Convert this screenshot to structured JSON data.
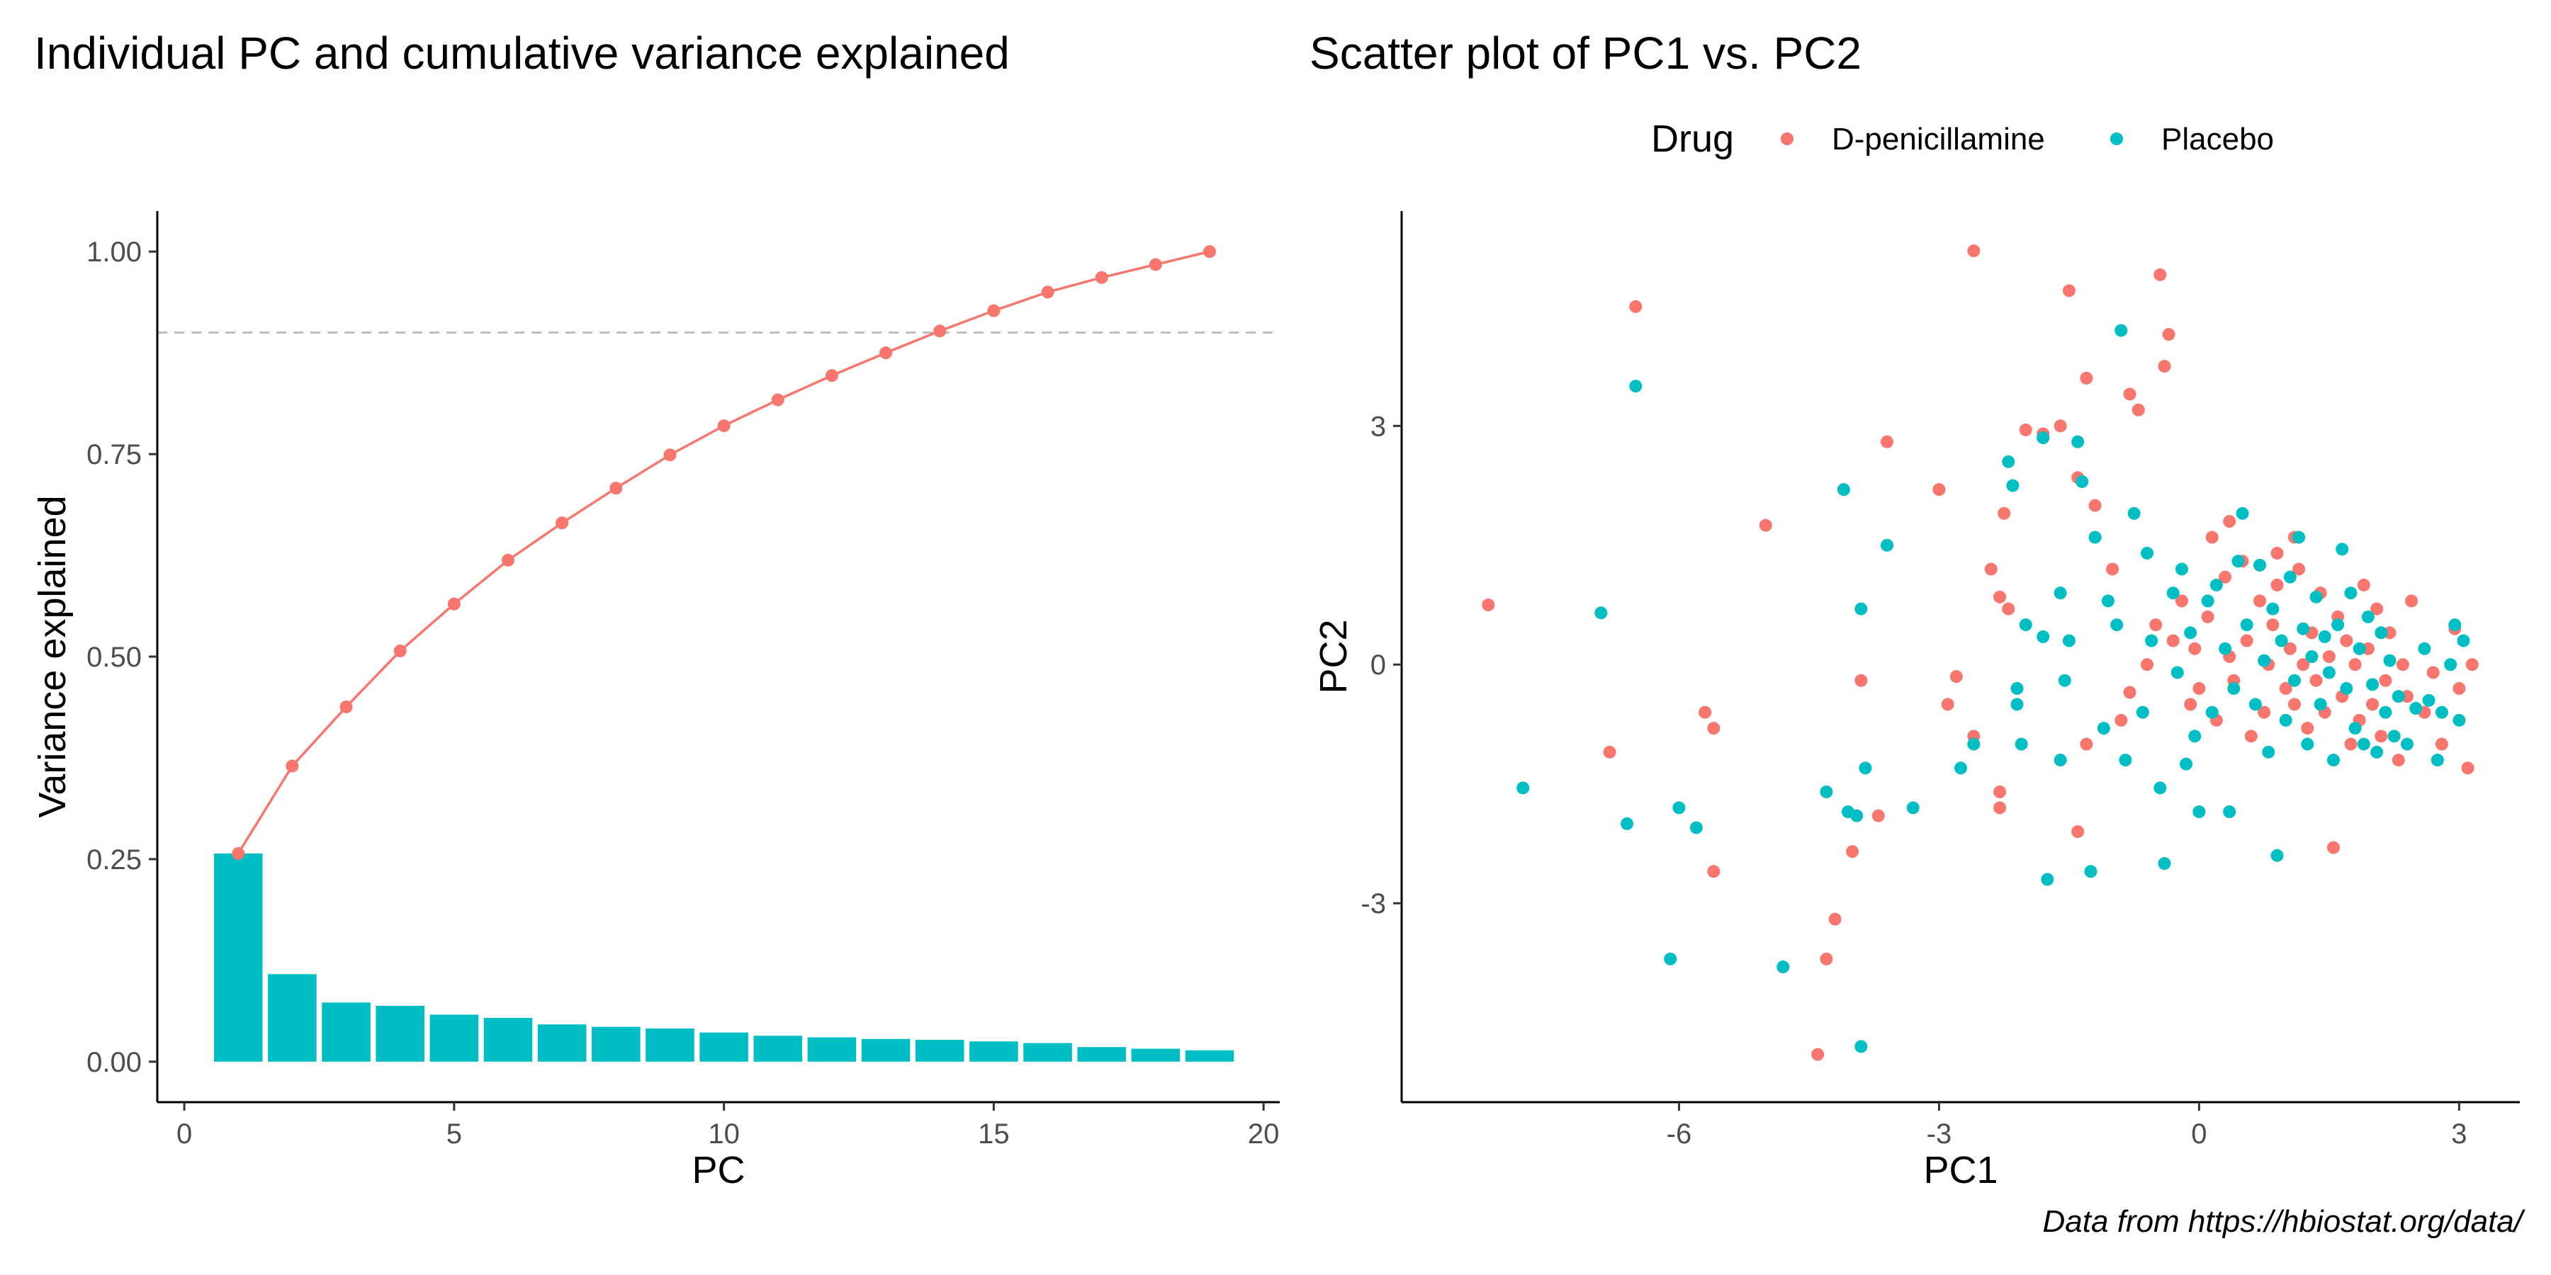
{
  "caption": "Data from https://hbiostat.org/data/",
  "chart_data": [
    {
      "type": "bar",
      "title": "Individual PC and cumulative variance explained",
      "xlabel": "PC",
      "ylabel": "Variance explained",
      "xlim": [
        -0.5,
        20.3
      ],
      "ylim": [
        -0.05,
        1.05
      ],
      "xticks": [
        0,
        5,
        10,
        15,
        20
      ],
      "yticks": [
        0.0,
        0.25,
        0.5,
        0.75,
        1.0
      ],
      "ytick_labels": [
        "0.00",
        "0.25",
        "0.50",
        "0.75",
        "1.00"
      ],
      "grid": false,
      "reference_line": {
        "y": 0.9,
        "style": "dashed",
        "color": "#bebebe"
      },
      "bar_color": "#00BFC4",
      "line_color": "#F8766D",
      "x": [
        1,
        2,
        3,
        4,
        5,
        6,
        7,
        8,
        9,
        10,
        11,
        12,
        13,
        14,
        15,
        16,
        17,
        18,
        19
      ],
      "individual": [
        0.257,
        0.108,
        0.073,
        0.069,
        0.058,
        0.054,
        0.046,
        0.043,
        0.041,
        0.036,
        0.032,
        0.03,
        0.028,
        0.027,
        0.025,
        0.023,
        0.018,
        0.016,
        0.014
      ],
      "cumulative": [
        0.257,
        0.365,
        0.438,
        0.507,
        0.565,
        0.619,
        0.665,
        0.708,
        0.749,
        0.785,
        0.817,
        0.847,
        0.875,
        0.902,
        0.927,
        0.95,
        0.968,
        0.984,
        1.0
      ]
    },
    {
      "type": "scatter",
      "title": "Scatter plot of PC1 vs. PC2",
      "xlabel": "PC1",
      "ylabel": "PC2",
      "xlim": [
        -9.2,
        3.7
      ],
      "ylim": [
        -5.5,
        5.7
      ],
      "xticks": [
        -6,
        -3,
        0,
        3
      ],
      "yticks": [
        -3,
        0,
        3
      ],
      "grid": false,
      "legend": {
        "title": "Drug",
        "position": "top"
      },
      "series": [
        {
          "name": "D-penicillamine",
          "color": "#F8766D",
          "points": [
            [
              -8.2,
              0.75
            ],
            [
              -6.5,
              4.5
            ],
            [
              -6.8,
              -1.1
            ],
            [
              -5.7,
              -0.6
            ],
            [
              -5.6,
              -0.8
            ],
            [
              -5.6,
              -2.6
            ],
            [
              -5.0,
              1.75
            ],
            [
              -4.4,
              -4.9
            ],
            [
              -4.3,
              -3.7
            ],
            [
              -4.2,
              -3.2
            ],
            [
              -4.0,
              -2.35
            ],
            [
              -3.9,
              -0.2
            ],
            [
              -3.7,
              -1.9
            ],
            [
              -3.6,
              2.8
            ],
            [
              -3.0,
              2.2
            ],
            [
              -2.9,
              -0.5
            ],
            [
              -2.8,
              -0.15
            ],
            [
              -2.6,
              -0.9
            ],
            [
              -2.4,
              1.2
            ],
            [
              -2.3,
              0.85
            ],
            [
              -2.3,
              -1.6
            ],
            [
              -2.25,
              1.9
            ],
            [
              -2.2,
              0.7
            ],
            [
              -2.0,
              2.95
            ],
            [
              -1.8,
              2.9
            ],
            [
              -1.6,
              3.0
            ],
            [
              -1.5,
              4.7
            ],
            [
              -1.4,
              2.35
            ],
            [
              -1.3,
              3.6
            ],
            [
              -1.3,
              -1.0
            ],
            [
              -1.2,
              2.0
            ],
            [
              -1.0,
              1.2
            ],
            [
              -0.8,
              -0.35
            ],
            [
              -0.9,
              -0.7
            ],
            [
              -0.8,
              3.4
            ],
            [
              -0.7,
              3.2
            ],
            [
              -0.6,
              0.0
            ],
            [
              -0.5,
              0.5
            ],
            [
              -0.4,
              3.75
            ],
            [
              -0.35,
              4.15
            ],
            [
              -0.3,
              0.3
            ],
            [
              -0.2,
              0.8
            ],
            [
              -0.1,
              -0.5
            ],
            [
              -0.05,
              0.2
            ],
            [
              0.0,
              -0.3
            ],
            [
              0.1,
              0.6
            ],
            [
              0.15,
              1.6
            ],
            [
              0.2,
              -0.7
            ],
            [
              0.3,
              1.1
            ],
            [
              0.35,
              0.1
            ],
            [
              0.4,
              -0.2
            ],
            [
              0.5,
              1.3
            ],
            [
              0.55,
              0.3
            ],
            [
              0.6,
              -0.9
            ],
            [
              0.7,
              0.8
            ],
            [
              0.75,
              -0.6
            ],
            [
              0.8,
              0.0
            ],
            [
              0.85,
              0.5
            ],
            [
              0.9,
              1.0
            ],
            [
              1.0,
              -0.3
            ],
            [
              1.05,
              0.2
            ],
            [
              1.1,
              -0.5
            ],
            [
              1.15,
              1.2
            ],
            [
              1.2,
              0.0
            ],
            [
              1.25,
              -0.8
            ],
            [
              1.3,
              0.4
            ],
            [
              1.35,
              -0.2
            ],
            [
              1.4,
              0.9
            ],
            [
              1.45,
              -0.6
            ],
            [
              1.5,
              0.1
            ],
            [
              1.55,
              -2.3
            ],
            [
              1.6,
              0.6
            ],
            [
              1.65,
              -0.4
            ],
            [
              1.7,
              0.3
            ],
            [
              1.75,
              -1.0
            ],
            [
              1.8,
              0.0
            ],
            [
              1.85,
              -0.7
            ],
            [
              1.9,
              1.0
            ],
            [
              1.95,
              0.2
            ],
            [
              2.0,
              -0.5
            ],
            [
              2.05,
              0.7
            ],
            [
              2.1,
              -0.9
            ],
            [
              2.15,
              -0.2
            ],
            [
              2.2,
              0.4
            ],
            [
              2.3,
              -1.2
            ],
            [
              2.35,
              0.0
            ],
            [
              2.4,
              -0.4
            ],
            [
              2.45,
              0.8
            ],
            [
              2.6,
              -0.6
            ],
            [
              2.7,
              -0.1
            ],
            [
              2.8,
              -1.0
            ],
            [
              2.95,
              0.45
            ],
            [
              3.0,
              -0.3
            ],
            [
              3.1,
              -1.3
            ],
            [
              3.15,
              0.0
            ],
            [
              -2.3,
              -1.8
            ],
            [
              -1.4,
              -2.1
            ],
            [
              -0.45,
              4.9
            ],
            [
              -2.6,
              5.2
            ],
            [
              1.1,
              1.6
            ],
            [
              0.9,
              1.4
            ],
            [
              0.35,
              1.8
            ]
          ]
        },
        {
          "name": "Placebo",
          "color": "#00BFC4",
          "points": [
            [
              -7.8,
              -1.55
            ],
            [
              -6.5,
              3.5
            ],
            [
              -6.9,
              0.65
            ],
            [
              -6.6,
              -2.0
            ],
            [
              -6.1,
              -3.7
            ],
            [
              -6.0,
              -1.8
            ],
            [
              -5.8,
              -2.05
            ],
            [
              -4.8,
              -3.8
            ],
            [
              -4.3,
              -1.6
            ],
            [
              -4.1,
              2.2
            ],
            [
              -4.05,
              -1.85
            ],
            [
              -3.95,
              -1.9
            ],
            [
              -3.9,
              -4.8
            ],
            [
              -3.9,
              0.7
            ],
            [
              -3.85,
              -1.3
            ],
            [
              -3.3,
              -1.8
            ],
            [
              -3.6,
              1.5
            ],
            [
              -2.6,
              -1.0
            ],
            [
              -2.75,
              -1.3
            ],
            [
              -2.2,
              2.55
            ],
            [
              -2.15,
              2.25
            ],
            [
              -2.0,
              0.5
            ],
            [
              -2.1,
              -0.5
            ],
            [
              -2.05,
              -1.0
            ],
            [
              -1.8,
              2.85
            ],
            [
              -1.75,
              -2.7
            ],
            [
              -1.6,
              0.9
            ],
            [
              -1.55,
              -0.2
            ],
            [
              -1.5,
              0.3
            ],
            [
              -1.4,
              2.8
            ],
            [
              -1.35,
              2.3
            ],
            [
              -1.25,
              -2.6
            ],
            [
              -1.2,
              1.6
            ],
            [
              -1.1,
              -0.8
            ],
            [
              -1.05,
              0.8
            ],
            [
              -0.95,
              0.5
            ],
            [
              -0.9,
              4.2
            ],
            [
              -0.85,
              -1.2
            ],
            [
              -0.75,
              1.9
            ],
            [
              -0.65,
              -0.6
            ],
            [
              -0.6,
              1.4
            ],
            [
              -0.55,
              0.3
            ],
            [
              -0.45,
              -1.55
            ],
            [
              -0.4,
              -2.5
            ],
            [
              -0.3,
              0.9
            ],
            [
              -0.25,
              -0.1
            ],
            [
              -0.2,
              1.2
            ],
            [
              -0.15,
              -1.25
            ],
            [
              -0.1,
              0.4
            ],
            [
              -0.05,
              -0.9
            ],
            [
              0.0,
              -1.85
            ],
            [
              0.1,
              0.8
            ],
            [
              0.15,
              -0.6
            ],
            [
              0.2,
              1.0
            ],
            [
              0.3,
              0.2
            ],
            [
              0.35,
              -1.85
            ],
            [
              0.4,
              -0.3
            ],
            [
              0.45,
              1.3
            ],
            [
              0.5,
              1.9
            ],
            [
              0.55,
              0.5
            ],
            [
              0.65,
              -0.5
            ],
            [
              0.7,
              1.25
            ],
            [
              0.75,
              0.05
            ],
            [
              0.8,
              -1.1
            ],
            [
              0.85,
              0.7
            ],
            [
              0.9,
              -2.4
            ],
            [
              0.95,
              0.3
            ],
            [
              1.0,
              -0.7
            ],
            [
              1.05,
              1.1
            ],
            [
              1.1,
              -0.2
            ],
            [
              1.15,
              1.6
            ],
            [
              1.2,
              0.45
            ],
            [
              1.25,
              -1.0
            ],
            [
              1.3,
              0.1
            ],
            [
              1.35,
              0.85
            ],
            [
              1.4,
              -0.5
            ],
            [
              1.45,
              0.35
            ],
            [
              1.5,
              -0.1
            ],
            [
              1.55,
              -1.2
            ],
            [
              1.6,
              0.5
            ],
            [
              1.65,
              1.45
            ],
            [
              1.7,
              -0.3
            ],
            [
              1.75,
              0.9
            ],
            [
              1.8,
              -0.8
            ],
            [
              1.85,
              0.2
            ],
            [
              1.9,
              -1.0
            ],
            [
              1.95,
              0.6
            ],
            [
              2.0,
              -0.25
            ],
            [
              2.05,
              -1.1
            ],
            [
              2.1,
              0.4
            ],
            [
              2.15,
              -0.6
            ],
            [
              2.2,
              0.05
            ],
            [
              2.25,
              -0.9
            ],
            [
              2.3,
              -0.4
            ],
            [
              2.4,
              -1.0
            ],
            [
              2.5,
              -0.55
            ],
            [
              2.6,
              0.2
            ],
            [
              2.65,
              -0.45
            ],
            [
              2.75,
              -1.2
            ],
            [
              2.8,
              -0.6
            ],
            [
              2.9,
              0.0
            ],
            [
              2.95,
              0.5
            ],
            [
              3.0,
              -0.7
            ],
            [
              3.05,
              0.3
            ],
            [
              -1.8,
              0.35
            ],
            [
              -2.1,
              -0.3
            ],
            [
              -1.6,
              -1.2
            ]
          ]
        }
      ]
    }
  ]
}
